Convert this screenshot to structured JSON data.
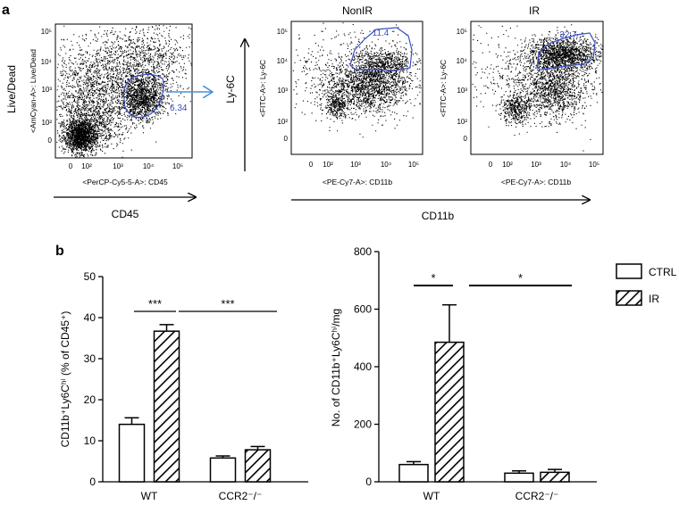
{
  "panels": {
    "a": "a",
    "b": "b"
  },
  "flow": {
    "plot1": {
      "y_outer": "Live/Dead",
      "y_inner": "<AmCyan-A>: Live/Dead",
      "x_inner": "<PerCP-Cy5-5-A>: CD45",
      "x_outer": "CD45",
      "gate_value": "6.34",
      "yticks": [
        "10⁵",
        "10⁴",
        "10³",
        "10²",
        "0"
      ],
      "xticks": [
        "0",
        "10²",
        "10³",
        "10⁴",
        "10⁵"
      ]
    },
    "ly6c_label": "Ly-6C",
    "plot2": {
      "title": "NonIR",
      "y_inner": "<FITC-A>: Ly-6C",
      "x_inner": "<PE-Cy7-A>: CD11b",
      "gate_value": "11.4",
      "yticks": [
        "10⁵",
        "10⁴",
        "10³",
        "10²",
        "0"
      ],
      "xticks": [
        "0",
        "10²",
        "10³",
        "10⁴",
        "10⁵"
      ]
    },
    "plot3": {
      "title": "IR",
      "y_inner": "<FITC-A>: Ly-6C",
      "x_inner": "<PE-Cy7-A>: CD11b",
      "gate_value": "32.7",
      "yticks": [
        "10⁵",
        "10⁴",
        "10³",
        "10²",
        "0"
      ],
      "xticks": [
        "0",
        "10²",
        "10³",
        "10⁴",
        "10⁵"
      ]
    },
    "cd11b_label": "CD11b"
  },
  "legend": {
    "ctrl": "CTRL",
    "ir": "IR"
  },
  "colors": {
    "gate": "#3a4fc8",
    "arrow": "#4a8fd8",
    "ink": "#000000"
  },
  "chart_data": [
    {
      "type": "bar",
      "categories": [
        "WT",
        "CCR2⁻/⁻"
      ],
      "series": [
        {
          "name": "CTRL",
          "values": [
            14.0,
            5.8
          ],
          "errors": [
            1.6,
            0.5
          ]
        },
        {
          "name": "IR",
          "values": [
            36.7,
            7.8
          ],
          "errors": [
            1.6,
            0.8
          ]
        }
      ],
      "ylabel": "CD11b⁺Ly6Cʰⁱ (% of CD45⁺)",
      "ylim": [
        0,
        50
      ],
      "yticks": [
        0,
        10,
        20,
        30,
        40,
        50
      ],
      "significance": [
        {
          "label": "***",
          "between": "WT CTRL vs WT IR"
        },
        {
          "label": "***",
          "between": "WT IR vs CCR2⁻/⁻ IR"
        }
      ]
    },
    {
      "type": "bar",
      "categories": [
        "WT",
        "CCR2⁻/⁻"
      ],
      "series": [
        {
          "name": "CTRL",
          "values": [
            60,
            30
          ],
          "errors": [
            10,
            8
          ]
        },
        {
          "name": "IR",
          "values": [
            485,
            33
          ],
          "errors": [
            130,
            10
          ]
        }
      ],
      "ylabel": "No. of CD11b⁺Ly6Cʰⁱ/mg",
      "ylim": [
        0,
        800
      ],
      "yticks": [
        0,
        200,
        400,
        600,
        800
      ],
      "significance": [
        {
          "label": "*",
          "between": "WT CTRL vs WT IR"
        },
        {
          "label": "*",
          "between": "WT IR vs CCR2⁻/⁻ IR"
        }
      ]
    }
  ]
}
